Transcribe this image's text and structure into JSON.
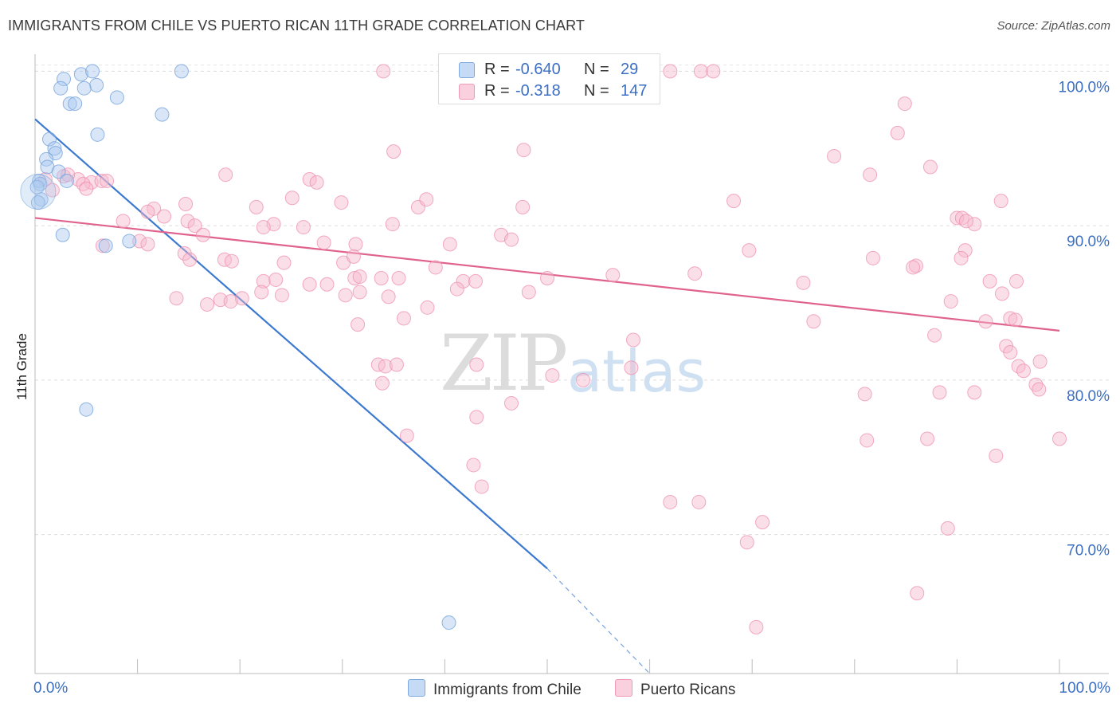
{
  "title": "IMMIGRANTS FROM CHILE VS PUERTO RICAN 11TH GRADE CORRELATION CHART",
  "source": "Source: ZipAtlas.com",
  "watermark": {
    "zip": "ZIP",
    "atlas": "atlas"
  },
  "legend_top": {
    "rows": [
      {
        "r_label": "R =",
        "r_value": "-0.640",
        "n_label": "N =",
        "n_value": "29",
        "color": "#a9c8ef"
      },
      {
        "r_label": "R =",
        "r_value": "-0.318",
        "n_label": "N =",
        "n_value": "147",
        "color": "#f6b9cc"
      }
    ]
  },
  "legend_bottom": [
    {
      "label": "Immigrants from Chile",
      "color": "#a9c8ef"
    },
    {
      "label": "Puerto Ricans",
      "color": "#f6b9cc"
    }
  ],
  "chart_data": {
    "type": "scatter",
    "title": "IMMIGRANTS FROM CHILE VS PUERTO RICAN 11TH GRADE CORRELATION CHART",
    "xlabel": "",
    "ylabel": "11th Grade",
    "xlim": [
      0,
      100
    ],
    "ylim": [
      61,
      101
    ],
    "x_tick_labels": [
      "0.0%",
      "100.0%"
    ],
    "y_ticks": [
      70,
      80,
      90,
      100
    ],
    "y_tick_labels": [
      "70.0%",
      "80.0%",
      "90.0%",
      "100.0%"
    ],
    "grid": true,
    "legend_position": "top-center",
    "series": [
      {
        "name": "Immigrants from Chile",
        "color": "#a9c8ef",
        "stroke": "#6f9fd8",
        "trend_color": "#3b78d0",
        "r": -0.64,
        "n": 29,
        "trend": {
          "x0": 0,
          "y0": 96.9,
          "x1": 50,
          "y1": 67.8,
          "dashed_to_x": 60,
          "dashed_to_y": 61.0
        },
        "points": [
          [
            2.8,
            99.5
          ],
          [
            4.5,
            99.8
          ],
          [
            5.6,
            100.0
          ],
          [
            14.3,
            100.0
          ],
          [
            2.5,
            98.9
          ],
          [
            6.0,
            99.1
          ],
          [
            4.8,
            98.9
          ],
          [
            3.4,
            97.9
          ],
          [
            3.9,
            97.9
          ],
          [
            8.0,
            98.3
          ],
          [
            12.4,
            97.2
          ],
          [
            1.4,
            95.6
          ],
          [
            6.1,
            95.9
          ],
          [
            1.9,
            95.0
          ],
          [
            2.0,
            94.7
          ],
          [
            1.1,
            94.3
          ],
          [
            1.2,
            93.8
          ],
          [
            2.3,
            93.5
          ],
          [
            0.4,
            92.9
          ],
          [
            0.5,
            92.7
          ],
          [
            3.1,
            92.9
          ],
          [
            0.6,
            91.7
          ],
          [
            0.3,
            91.5
          ],
          [
            2.7,
            89.4
          ],
          [
            6.9,
            88.7
          ],
          [
            9.2,
            89.0
          ],
          [
            5.0,
            78.1
          ],
          [
            40.4,
            64.3
          ],
          [
            0.2,
            92.5
          ]
        ]
      },
      {
        "name": "Puerto Ricans",
        "color": "#f6b9cc",
        "stroke": "#ee8faf",
        "trend_color": "#e0628e",
        "r": -0.318,
        "n": 147,
        "trend": {
          "x0": 0,
          "y0": 90.5,
          "x1": 100,
          "y1": 83.2
        },
        "points": [
          [
            34.0,
            100.0
          ],
          [
            47.8,
            100.0
          ],
          [
            54.3,
            100.0
          ],
          [
            55.5,
            100.0
          ],
          [
            57.0,
            100.0
          ],
          [
            62.0,
            100.0
          ],
          [
            65.0,
            100.0
          ],
          [
            66.2,
            100.0
          ],
          [
            58.3,
            99.6
          ],
          [
            46.4,
            99.1
          ],
          [
            84.9,
            97.9
          ],
          [
            35.0,
            94.8
          ],
          [
            47.7,
            94.9
          ],
          [
            78.0,
            94.5
          ],
          [
            87.4,
            93.8
          ],
          [
            81.5,
            93.3
          ],
          [
            1.0,
            93.0
          ],
          [
            2.8,
            93.2
          ],
          [
            4.2,
            93.0
          ],
          [
            5.5,
            92.8
          ],
          [
            6.5,
            92.9
          ],
          [
            7.0,
            92.9
          ],
          [
            3.2,
            93.3
          ],
          [
            4.7,
            92.7
          ],
          [
            1.7,
            92.3
          ],
          [
            18.6,
            93.3
          ],
          [
            26.8,
            93.0
          ],
          [
            27.5,
            92.8
          ],
          [
            5.0,
            92.4
          ],
          [
            25.1,
            91.8
          ],
          [
            29.9,
            91.5
          ],
          [
            37.4,
            91.2
          ],
          [
            38.2,
            91.7
          ],
          [
            47.6,
            91.2
          ],
          [
            68.2,
            91.6
          ],
          [
            94.3,
            91.6
          ],
          [
            21.6,
            91.2
          ],
          [
            11.6,
            91.1
          ],
          [
            14.7,
            91.4
          ],
          [
            8.6,
            90.3
          ],
          [
            11.0,
            90.9
          ],
          [
            12.6,
            90.6
          ],
          [
            14.9,
            90.3
          ],
          [
            15.6,
            90.0
          ],
          [
            23.3,
            90.1
          ],
          [
            26.2,
            89.9
          ],
          [
            22.3,
            89.9
          ],
          [
            34.9,
            90.1
          ],
          [
            91.7,
            90.1
          ],
          [
            90.0,
            90.5
          ],
          [
            90.5,
            90.5
          ],
          [
            90.9,
            90.3
          ],
          [
            45.5,
            89.4
          ],
          [
            46.5,
            89.1
          ],
          [
            10.2,
            89.0
          ],
          [
            11.0,
            88.8
          ],
          [
            28.2,
            88.9
          ],
          [
            31.3,
            88.8
          ],
          [
            40.5,
            88.8
          ],
          [
            16.4,
            89.4
          ],
          [
            69.7,
            88.4
          ],
          [
            90.8,
            88.4
          ],
          [
            6.6,
            88.7
          ],
          [
            14.6,
            88.2
          ],
          [
            15.1,
            87.8
          ],
          [
            18.5,
            87.8
          ],
          [
            19.2,
            87.7
          ],
          [
            24.3,
            87.6
          ],
          [
            30.1,
            87.6
          ],
          [
            31.1,
            88.0
          ],
          [
            39.1,
            87.3
          ],
          [
            90.4,
            87.9
          ],
          [
            81.8,
            87.9
          ],
          [
            86.0,
            87.4
          ],
          [
            85.7,
            87.3
          ],
          [
            64.4,
            86.9
          ],
          [
            31.2,
            86.6
          ],
          [
            31.7,
            86.7
          ],
          [
            33.8,
            86.6
          ],
          [
            41.8,
            86.4
          ],
          [
            43.0,
            86.4
          ],
          [
            56.4,
            86.8
          ],
          [
            22.3,
            86.4
          ],
          [
            23.5,
            86.5
          ],
          [
            26.8,
            86.2
          ],
          [
            28.5,
            86.2
          ],
          [
            35.5,
            86.6
          ],
          [
            93.2,
            86.4
          ],
          [
            22.1,
            85.7
          ],
          [
            31.7,
            85.7
          ],
          [
            41.2,
            85.9
          ],
          [
            48.2,
            85.7
          ],
          [
            50.0,
            86.6
          ],
          [
            75.0,
            86.3
          ],
          [
            95.8,
            86.4
          ],
          [
            94.4,
            85.6
          ],
          [
            13.8,
            85.3
          ],
          [
            20.2,
            85.3
          ],
          [
            24.1,
            85.5
          ],
          [
            30.3,
            85.5
          ],
          [
            34.5,
            85.4
          ],
          [
            89.4,
            85.1
          ],
          [
            16.8,
            84.9
          ],
          [
            18.1,
            85.2
          ],
          [
            19.1,
            85.1
          ],
          [
            38.3,
            84.7
          ],
          [
            95.2,
            84.0
          ],
          [
            95.7,
            83.9
          ],
          [
            31.5,
            83.6
          ],
          [
            36.0,
            84.0
          ],
          [
            76.0,
            83.8
          ],
          [
            58.4,
            82.6
          ],
          [
            87.8,
            82.9
          ],
          [
            92.8,
            83.8
          ],
          [
            94.8,
            82.2
          ],
          [
            95.2,
            81.8
          ],
          [
            96.0,
            80.9
          ],
          [
            98.1,
            81.2
          ],
          [
            33.5,
            81.0
          ],
          [
            34.2,
            80.9
          ],
          [
            35.3,
            81.0
          ],
          [
            43.1,
            81.0
          ],
          [
            50.5,
            80.3
          ],
          [
            53.5,
            80.0
          ],
          [
            58.2,
            80.8
          ],
          [
            33.9,
            79.8
          ],
          [
            96.5,
            80.6
          ],
          [
            97.7,
            79.7
          ],
          [
            98.0,
            79.4
          ],
          [
            91.7,
            79.2
          ],
          [
            88.3,
            79.2
          ],
          [
            81.0,
            79.1
          ],
          [
            46.5,
            78.5
          ],
          [
            43.1,
            77.6
          ],
          [
            36.3,
            76.4
          ],
          [
            87.1,
            76.2
          ],
          [
            100.0,
            76.2
          ],
          [
            81.2,
            76.1
          ],
          [
            93.8,
            75.1
          ],
          [
            42.8,
            74.5
          ],
          [
            43.6,
            73.1
          ],
          [
            62.0,
            72.1
          ],
          [
            64.8,
            72.1
          ],
          [
            71.0,
            70.8
          ],
          [
            89.1,
            70.4
          ],
          [
            69.5,
            69.5
          ],
          [
            86.1,
            66.2
          ],
          [
            70.4,
            64.0
          ],
          [
            84.2,
            96.0
          ]
        ]
      }
    ]
  }
}
